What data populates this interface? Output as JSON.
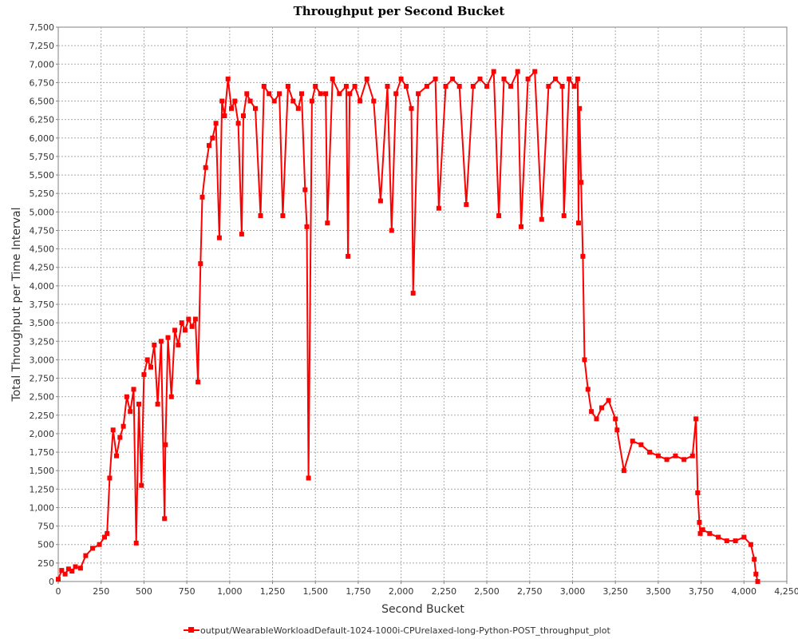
{
  "chart_data": {
    "type": "line",
    "title": "Throughput per Second Bucket",
    "xlabel": "Second Bucket",
    "ylabel": "Total Throughput per Time Interval",
    "xlim": [
      0,
      4250
    ],
    "ylim": [
      0,
      7500
    ],
    "x_ticks": [
      0,
      250,
      500,
      750,
      1000,
      1250,
      1500,
      1750,
      2000,
      2250,
      2500,
      2750,
      3000,
      3250,
      3500,
      3750,
      4000,
      4250
    ],
    "y_ticks": [
      0,
      250,
      500,
      750,
      1000,
      1250,
      1500,
      1750,
      2000,
      2250,
      2500,
      2750,
      3000,
      3250,
      3500,
      3750,
      4000,
      4250,
      4500,
      4750,
      5000,
      5250,
      5500,
      5750,
      6000,
      6250,
      6500,
      6750,
      7000,
      7250,
      7500
    ],
    "x_tick_labels": [
      "0",
      "250",
      "500",
      "750",
      "1,000",
      "1,250",
      "1,500",
      "1,750",
      "2,000",
      "2,250",
      "2,500",
      "2,750",
      "3,000",
      "3,250",
      "3,500",
      "3,750",
      "4,000",
      "4,250"
    ],
    "y_tick_labels": [
      "0",
      "250",
      "500",
      "750",
      "1,000",
      "1,250",
      "1,500",
      "1,750",
      "2,000",
      "2,250",
      "2,500",
      "2,750",
      "3,000",
      "3,250",
      "3,500",
      "3,750",
      "4,000",
      "4,250",
      "4,500",
      "4,750",
      "5,000",
      "5,250",
      "5,500",
      "5,750",
      "6,000",
      "6,250",
      "6,500",
      "6,750",
      "7,000",
      "7,250",
      "7,500"
    ],
    "grid": true,
    "legend_position": "bottom",
    "series_color": "#ff0000",
    "series": [
      {
        "name": "output/WearableWorkloadDefault-1024-1000i-CPUrelaxed-long-Python-POST_throughput_plot",
        "x": [
          0,
          20,
          40,
          60,
          80,
          100,
          130,
          160,
          200,
          240,
          270,
          285,
          300,
          320,
          340,
          360,
          380,
          400,
          420,
          440,
          455,
          470,
          485,
          500,
          520,
          540,
          560,
          580,
          600,
          620,
          625,
          640,
          660,
          680,
          700,
          720,
          740,
          760,
          780,
          800,
          815,
          830,
          840,
          860,
          880,
          900,
          920,
          940,
          955,
          970,
          990,
          1010,
          1030,
          1050,
          1070,
          1080,
          1100,
          1120,
          1150,
          1180,
          1200,
          1230,
          1260,
          1290,
          1310,
          1340,
          1370,
          1400,
          1420,
          1440,
          1450,
          1460,
          1480,
          1500,
          1530,
          1560,
          1570,
          1600,
          1640,
          1680,
          1690,
          1700,
          1730,
          1760,
          1800,
          1840,
          1880,
          1920,
          1945,
          1970,
          2000,
          2030,
          2060,
          2070,
          2100,
          2150,
          2200,
          2220,
          2260,
          2300,
          2340,
          2380,
          2420,
          2460,
          2500,
          2540,
          2570,
          2600,
          2640,
          2680,
          2700,
          2740,
          2780,
          2820,
          2860,
          2900,
          2940,
          2950,
          2980,
          3010,
          3030,
          3035,
          3040,
          3050,
          3060,
          3070,
          3090,
          3110,
          3140,
          3170,
          3210,
          3250,
          3260,
          3300,
          3350,
          3400,
          3450,
          3500,
          3550,
          3600,
          3650,
          3700,
          3720,
          3730,
          3740,
          3745,
          3760,
          3800,
          3850,
          3900,
          3950,
          4000,
          4040,
          4060,
          4070,
          4080
        ],
        "values": [
          30,
          150,
          100,
          170,
          140,
          200,
          180,
          350,
          450,
          500,
          600,
          650,
          1400,
          2050,
          1700,
          1950,
          2100,
          2500,
          2300,
          2600,
          520,
          2400,
          1300,
          2800,
          3000,
          2900,
          3200,
          2400,
          3250,
          850,
          1850,
          3300,
          2500,
          3400,
          3200,
          3500,
          3400,
          3550,
          3450,
          3550,
          2700,
          4300,
          5200,
          5600,
          5900,
          6000,
          6200,
          4650,
          6500,
          6300,
          6800,
          6400,
          6500,
          6200,
          4700,
          6300,
          6600,
          6500,
          6400,
          4950,
          6700,
          6600,
          6500,
          6600,
          4950,
          6700,
          6500,
          6400,
          6600,
          5300,
          4800,
          1400,
          6500,
          6700,
          6600,
          6600,
          4850,
          6800,
          6600,
          6700,
          4400,
          6600,
          6700,
          6500,
          6800,
          6500,
          5150,
          6700,
          4750,
          6600,
          6800,
          6700,
          6400,
          3900,
          6600,
          6700,
          6800,
          5050,
          6700,
          6800,
          6700,
          5100,
          6700,
          6800,
          6700,
          6900,
          4950,
          6800,
          6700,
          6900,
          4800,
          6800,
          6900,
          4900,
          6700,
          6800,
          6700,
          4950,
          6800,
          6700,
          6800,
          4850,
          6400,
          5400,
          4400,
          3000,
          2600,
          2300,
          2200,
          2350,
          2450,
          2200,
          2050,
          1500,
          1900,
          1850,
          1750,
          1700,
          1650,
          1700,
          1650,
          1700,
          2200,
          1200,
          800,
          650,
          700,
          650,
          600,
          550,
          550,
          600,
          500,
          300,
          100,
          0
        ]
      }
    ]
  }
}
